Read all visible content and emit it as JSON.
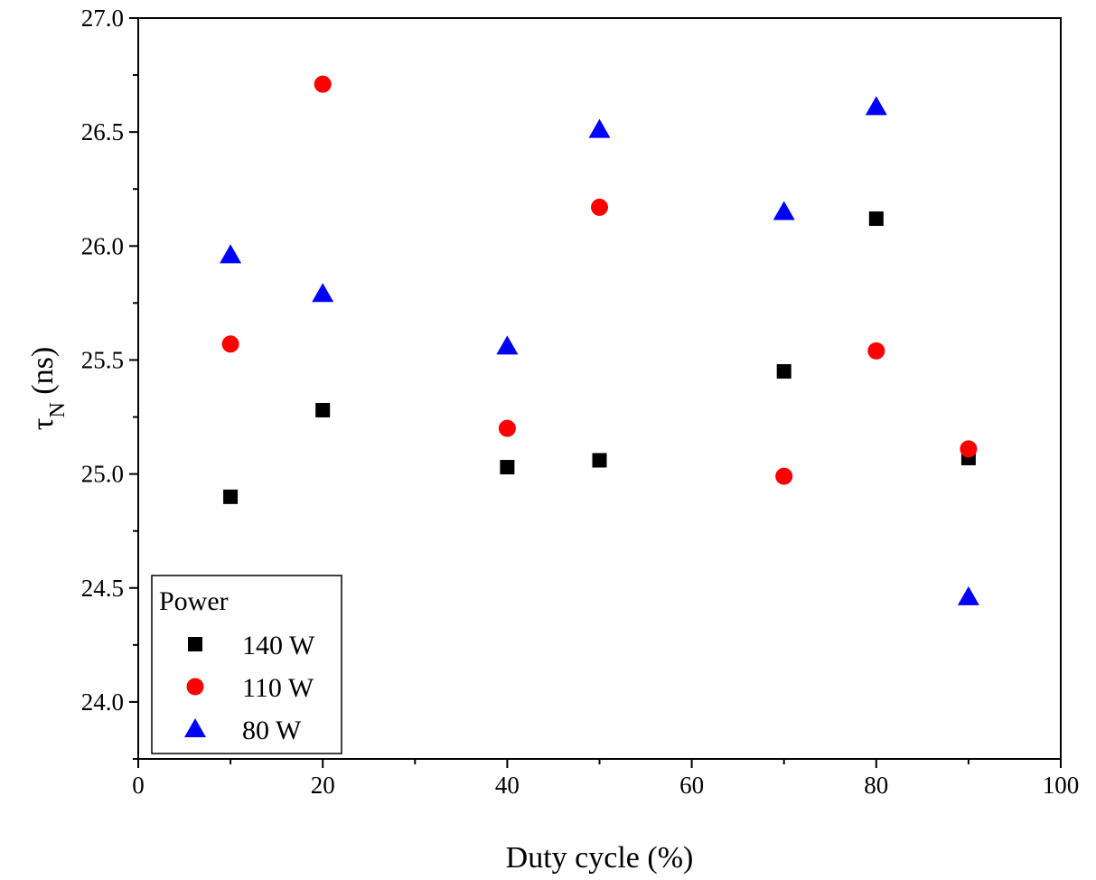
{
  "chart_data": {
    "type": "scatter",
    "title": "",
    "xlabel": "Duty cycle (%)",
    "ylabel_main": "τ",
    "ylabel_sub": "N",
    "ylabel_unit": " (ns)",
    "xlim": [
      0,
      100
    ],
    "ylim": [
      23.75,
      27.0
    ],
    "x_ticks": [
      0,
      20,
      40,
      60,
      80,
      100
    ],
    "x_tick_labels": [
      "0",
      "20",
      "40",
      "60",
      "80",
      "100"
    ],
    "x_minor_ticks": [
      10,
      30,
      50,
      70,
      90
    ],
    "y_ticks": [
      24.0,
      24.5,
      25.0,
      25.5,
      26.0,
      26.5,
      27.0
    ],
    "y_tick_labels": [
      "24.0",
      "24.5",
      "25.0",
      "25.5",
      "26.0",
      "26.5",
      "27.0"
    ],
    "y_minor_ticks": [
      23.75,
      24.25,
      24.75,
      25.25,
      25.75,
      26.25,
      26.75
    ],
    "grid": false,
    "legend": {
      "title": "Power",
      "placement": "bottom-left"
    },
    "series": [
      {
        "name": "140 W",
        "marker": "square",
        "color": "#000000",
        "x": [
          10,
          20,
          40,
          50,
          70,
          80,
          90
        ],
        "y": [
          24.9,
          25.28,
          25.03,
          25.06,
          25.45,
          26.12,
          25.07
        ]
      },
      {
        "name": "110 W",
        "marker": "circle",
        "color": "#ff0000",
        "x": [
          10,
          20,
          40,
          50,
          70,
          80,
          90
        ],
        "y": [
          25.57,
          26.71,
          25.2,
          26.17,
          24.99,
          25.54,
          25.11
        ]
      },
      {
        "name": "80 W",
        "marker": "triangle",
        "color": "#0000ff",
        "x": [
          10,
          20,
          40,
          50,
          70,
          80,
          90
        ],
        "y": [
          25.96,
          25.79,
          25.56,
          26.51,
          26.15,
          26.61,
          24.46
        ]
      }
    ]
  }
}
